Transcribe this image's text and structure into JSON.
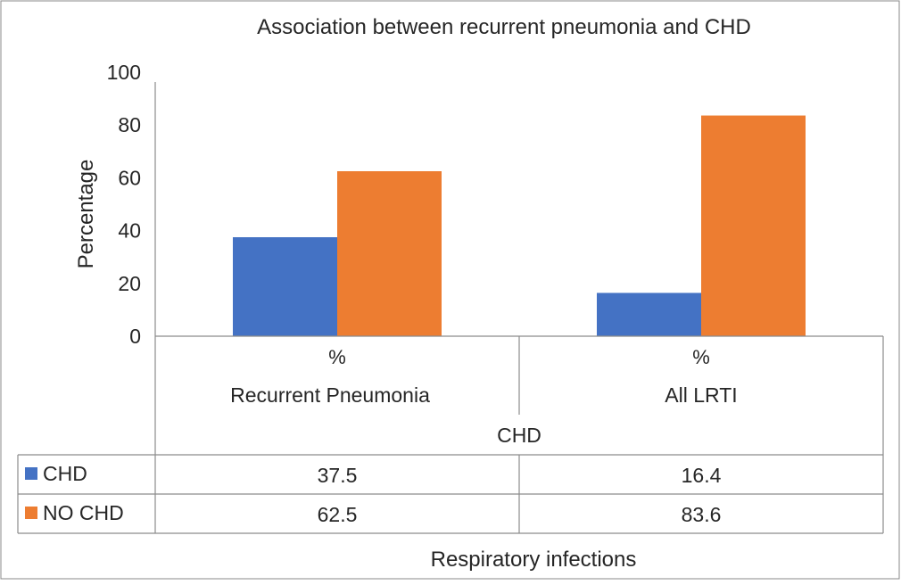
{
  "chart_data": {
    "type": "bar",
    "title": "Association between recurrent pneumonia and CHD",
    "ylabel": "Percentage",
    "xlabel": "Respiratory infections",
    "ylim": [
      0,
      100
    ],
    "yticks": [
      "0",
      "20",
      "40",
      "60",
      "80",
      "100"
    ],
    "grid": false,
    "legend": "data-table",
    "categories": [
      {
        "top": "%",
        "middle": "Recurrent Pneumonia"
      },
      {
        "top": "%",
        "middle": "All LRTI"
      }
    ],
    "group_label": "CHD",
    "series": [
      {
        "name": "CHD",
        "color": "#4472C4",
        "values": [
          37.5,
          16.4
        ],
        "labels": [
          "37.5",
          "16.4"
        ]
      },
      {
        "name": "NO CHD",
        "color": "#ED7D31",
        "values": [
          62.5,
          83.6
        ],
        "labels": [
          "62.5",
          "83.6"
        ]
      }
    ]
  }
}
